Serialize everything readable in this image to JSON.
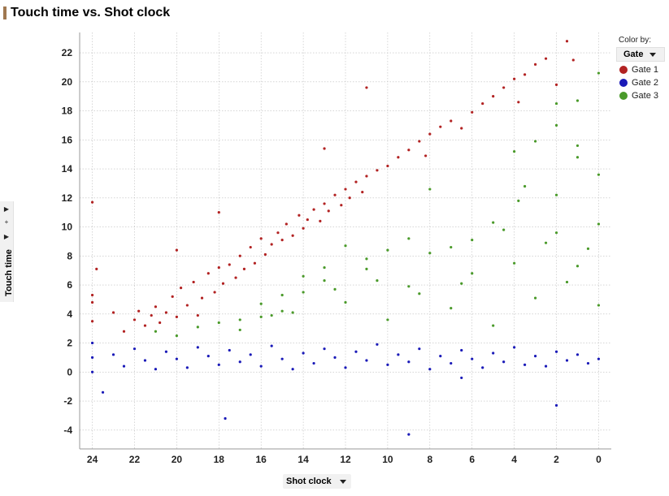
{
  "title": "Touch time vs. Shot clock",
  "color_by": {
    "label": "Color by:",
    "selected": "Gate"
  },
  "left_controls": {
    "expand_icon": "triangle-right-icon",
    "add_icon": "plus-icon",
    "menu_icon": "triangle-right-icon"
  },
  "colors": {
    "gate1": "#b22222",
    "gate2": "#1a1ab8",
    "gate3": "#4a9a2a",
    "grid": "#bdbdbd",
    "title_accent": "#a07850"
  },
  "chart_data": {
    "type": "scatter",
    "title": "Touch time vs. Shot clock",
    "xlabel": "Shot clock",
    "ylabel": "Touch time",
    "xlim": [
      24.6,
      -0.6
    ],
    "ylim": [
      -5.3,
      23.4
    ],
    "x_reversed": true,
    "xticks": [
      24,
      22,
      20,
      18,
      16,
      14,
      12,
      10,
      8,
      6,
      4,
      2,
      0
    ],
    "yticks": [
      -4,
      -2,
      0,
      2,
      4,
      6,
      8,
      10,
      12,
      14,
      16,
      18,
      20,
      22
    ],
    "grid": true,
    "legend": "top-right",
    "series": [
      {
        "name": "Gate 1",
        "color": "#b22222",
        "points": [
          [
            24,
            11.7
          ],
          [
            24,
            5.3
          ],
          [
            24,
            4.8
          ],
          [
            24,
            3.5
          ],
          [
            23.8,
            7.1
          ],
          [
            23,
            4.1
          ],
          [
            22.5,
            2.8
          ],
          [
            22,
            3.6
          ],
          [
            21.8,
            4.2
          ],
          [
            21.5,
            3.2
          ],
          [
            21.2,
            3.9
          ],
          [
            21,
            4.5
          ],
          [
            20.8,
            3.4
          ],
          [
            20.5,
            4.1
          ],
          [
            20.2,
            5.2
          ],
          [
            20,
            8.4
          ],
          [
            20,
            3.8
          ],
          [
            19.8,
            5.8
          ],
          [
            19.5,
            4.6
          ],
          [
            19.2,
            6.2
          ],
          [
            19,
            3.9
          ],
          [
            18.8,
            5.1
          ],
          [
            18.5,
            6.8
          ],
          [
            18.2,
            5.5
          ],
          [
            18,
            11
          ],
          [
            18,
            7.2
          ],
          [
            17.8,
            6.1
          ],
          [
            17.5,
            7.4
          ],
          [
            17.2,
            6.5
          ],
          [
            17,
            8
          ],
          [
            16.8,
            7.1
          ],
          [
            16.5,
            8.6
          ],
          [
            16.3,
            7.5
          ],
          [
            16,
            9.2
          ],
          [
            15.8,
            8.1
          ],
          [
            15.5,
            8.8
          ],
          [
            15.2,
            9.6
          ],
          [
            15,
            9.1
          ],
          [
            14.8,
            10.2
          ],
          [
            14.5,
            9.4
          ],
          [
            14.2,
            10.8
          ],
          [
            14,
            9.9
          ],
          [
            13.8,
            10.5
          ],
          [
            13.5,
            11.2
          ],
          [
            13.2,
            10.4
          ],
          [
            13,
            11.6
          ],
          [
            12.8,
            11.1
          ],
          [
            12.5,
            12.2
          ],
          [
            12.2,
            11.5
          ],
          [
            12,
            12.6
          ],
          [
            11.8,
            12
          ],
          [
            11.5,
            13.1
          ],
          [
            11.2,
            12.4
          ],
          [
            11,
            13.5
          ],
          [
            11,
            19.6
          ],
          [
            10.5,
            13.9
          ],
          [
            10,
            14.2
          ],
          [
            9.5,
            14.8
          ],
          [
            9,
            15.3
          ],
          [
            8.5,
            15.9
          ],
          [
            8,
            16.4
          ],
          [
            7.5,
            16.9
          ],
          [
            7,
            17.3
          ],
          [
            6.5,
            16.8
          ],
          [
            6,
            17.9
          ],
          [
            5.5,
            18.5
          ],
          [
            5,
            19
          ],
          [
            4.5,
            19.6
          ],
          [
            4,
            20.2
          ],
          [
            3.5,
            20.5
          ],
          [
            3,
            21.2
          ],
          [
            2.5,
            21.6
          ],
          [
            1.5,
            22.8
          ],
          [
            1.2,
            21.5
          ],
          [
            13,
            15.4
          ],
          [
            2,
            19.8
          ],
          [
            3.8,
            18.6
          ],
          [
            8.2,
            14.9
          ]
        ]
      },
      {
        "name": "Gate 2",
        "color": "#1a1ab8",
        "points": [
          [
            24,
            0
          ],
          [
            24,
            1
          ],
          [
            24,
            2
          ],
          [
            23.5,
            -1.4
          ],
          [
            23,
            1.2
          ],
          [
            22.5,
            0.4
          ],
          [
            22,
            1.6
          ],
          [
            21.5,
            0.8
          ],
          [
            21,
            0.2
          ],
          [
            20.5,
            1.4
          ],
          [
            20,
            0.9
          ],
          [
            19.5,
            0.3
          ],
          [
            19,
            1.7
          ],
          [
            18.5,
            1.1
          ],
          [
            18,
            0.5
          ],
          [
            17.5,
            1.5
          ],
          [
            17,
            0.7
          ],
          [
            16.5,
            1.2
          ],
          [
            16,
            0.4
          ],
          [
            15.5,
            1.8
          ],
          [
            15,
            0.9
          ],
          [
            14.5,
            0.2
          ],
          [
            14,
            1.3
          ],
          [
            13.5,
            0.6
          ],
          [
            13,
            1.6
          ],
          [
            12.5,
            1
          ],
          [
            12,
            0.3
          ],
          [
            11.5,
            1.4
          ],
          [
            11,
            0.8
          ],
          [
            10.5,
            1.9
          ],
          [
            10,
            0.5
          ],
          [
            9.5,
            1.2
          ],
          [
            9,
            0.7
          ],
          [
            8.5,
            1.6
          ],
          [
            8,
            0.2
          ],
          [
            7.5,
            1.1
          ],
          [
            7,
            0.6
          ],
          [
            6.5,
            1.5
          ],
          [
            6,
            0.9
          ],
          [
            5.5,
            0.3
          ],
          [
            5,
            1.3
          ],
          [
            4.5,
            0.7
          ],
          [
            4,
            1.7
          ],
          [
            3.5,
            0.5
          ],
          [
            3,
            1.1
          ],
          [
            2.5,
            0.4
          ],
          [
            2,
            1.4
          ],
          [
            1.5,
            0.8
          ],
          [
            1,
            1.2
          ],
          [
            0.5,
            0.6
          ],
          [
            0,
            0.9
          ],
          [
            17.7,
            -3.2
          ],
          [
            9,
            -4.3
          ],
          [
            2,
            -2.3
          ],
          [
            6.5,
            -0.4
          ]
        ]
      },
      {
        "name": "Gate 3",
        "color": "#4a9a2a",
        "points": [
          [
            21,
            2.8
          ],
          [
            20,
            2.5
          ],
          [
            19,
            3.1
          ],
          [
            18,
            3.4
          ],
          [
            17,
            2.9
          ],
          [
            16,
            3.8
          ],
          [
            15,
            4.2
          ],
          [
            14,
            5.5
          ],
          [
            13,
            6.3
          ],
          [
            12,
            4.8
          ],
          [
            11,
            7.1
          ],
          [
            10,
            3.6
          ],
          [
            9,
            5.9
          ],
          [
            8,
            8.2
          ],
          [
            7,
            4.4
          ],
          [
            6,
            6.8
          ],
          [
            5,
            3.2
          ],
          [
            4,
            7.5
          ],
          [
            3,
            5.1
          ],
          [
            2,
            9.6
          ],
          [
            1,
            7.3
          ],
          [
            0,
            4.6
          ],
          [
            0,
            13.6
          ],
          [
            0,
            20.6
          ],
          [
            1,
            18.7
          ],
          [
            1,
            15.6
          ],
          [
            1,
            14.8
          ],
          [
            2,
            17
          ],
          [
            2,
            18.5
          ],
          [
            2,
            12.2
          ],
          [
            3,
            15.9
          ],
          [
            3.5,
            12.8
          ],
          [
            4,
            15.2
          ],
          [
            3.8,
            11.8
          ],
          [
            8,
            12.6
          ],
          [
            5,
            10.3
          ],
          [
            6,
            9.1
          ],
          [
            7,
            8.6
          ],
          [
            9,
            9.2
          ],
          [
            10,
            8.4
          ],
          [
            11,
            7.8
          ],
          [
            12,
            8.7
          ],
          [
            13,
            7.2
          ],
          [
            14,
            6.6
          ],
          [
            15,
            5.3
          ],
          [
            16,
            4.7
          ],
          [
            17,
            3.6
          ],
          [
            0,
            10.2
          ],
          [
            0.5,
            8.5
          ],
          [
            1.5,
            6.2
          ],
          [
            2.5,
            8.9
          ],
          [
            4.5,
            9.8
          ],
          [
            6.5,
            6.1
          ],
          [
            8.5,
            5.4
          ],
          [
            10.5,
            6.3
          ],
          [
            12.5,
            5.7
          ],
          [
            14.5,
            4.1
          ],
          [
            15.5,
            3.9
          ]
        ]
      }
    ]
  }
}
